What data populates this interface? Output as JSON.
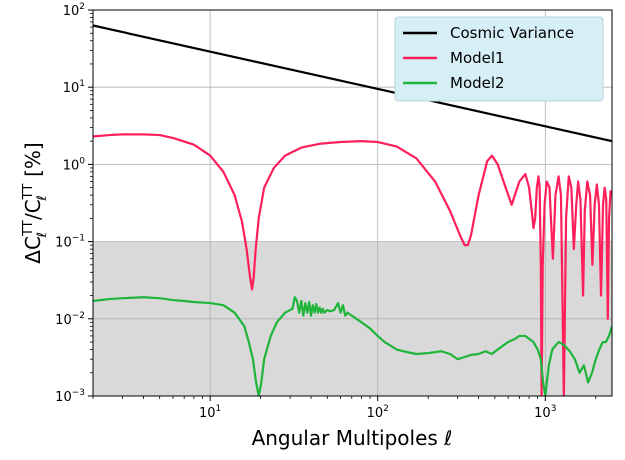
{
  "chart_data": {
    "type": "line",
    "title": "",
    "xlabel": "Angular Multipoles ℓ",
    "ylabel": "ΔCℓTT/CℓTT [%]",
    "ylabel_parts": {
      "delta_c": "ΔC",
      "ell_sub": "ℓ",
      "tt_sup": "TT",
      "slash_c": "/C",
      "percent": " [%]"
    },
    "xscale": "log",
    "yscale": "log",
    "xlim": [
      2,
      2500
    ],
    "ylim": [
      0.001,
      100
    ],
    "grid": true,
    "legend_position": "top-right",
    "shaded_region": {
      "y_from": 0.001,
      "y_to": 0.1,
      "color": "#d9d9d9"
    },
    "x_ticks": [
      {
        "value": 10,
        "base": "10",
        "exp": "1"
      },
      {
        "value": 100,
        "base": "10",
        "exp": "2"
      },
      {
        "value": 1000,
        "base": "10",
        "exp": "3"
      }
    ],
    "y_ticks": [
      {
        "value": 0.001,
        "base": "10",
        "exp": "−3"
      },
      {
        "value": 0.01,
        "base": "10",
        "exp": "−2"
      },
      {
        "value": 0.1,
        "base": "10",
        "exp": "−1"
      },
      {
        "value": 1,
        "base": "10",
        "exp": "0"
      },
      {
        "value": 10,
        "base": "10",
        "exp": "1"
      },
      {
        "value": 100,
        "base": "10",
        "exp": "2"
      }
    ],
    "series": [
      {
        "name": "Cosmic Variance",
        "color": "#000000",
        "x": [
          2,
          2500
        ],
        "y": [
          63,
          2.0
        ]
      },
      {
        "name": "Model1",
        "color": "#ff1f5b",
        "x": [
          2,
          2.5,
          3,
          4,
          5,
          6,
          8,
          10,
          12,
          14,
          15.5,
          16.5,
          17.3,
          17.8,
          18.2,
          18.7,
          19.5,
          21,
          24,
          28,
          35,
          45,
          60,
          80,
          100,
          130,
          170,
          220,
          270,
          310,
          330,
          345,
          360,
          400,
          450,
          480,
          520,
          580,
          630,
          700,
          760,
          800,
          830,
          850,
          870,
          890,
          910,
          925,
          940,
          950,
          965,
          990,
          1020,
          1060,
          1080,
          1110,
          1150,
          1200,
          1240,
          1290,
          1330,
          1380,
          1430,
          1480,
          1530,
          1570,
          1620,
          1680,
          1720,
          1780,
          1850,
          1910,
          1970,
          2030,
          2090,
          2150,
          2210,
          2260,
          2310,
          2360,
          2400,
          2450,
          2500
        ],
        "y": [
          2.3,
          2.4,
          2.45,
          2.45,
          2.4,
          2.2,
          1.8,
          1.3,
          0.8,
          0.4,
          0.18,
          0.08,
          0.035,
          0.024,
          0.035,
          0.08,
          0.2,
          0.5,
          0.9,
          1.3,
          1.65,
          1.85,
          1.95,
          2.0,
          1.95,
          1.7,
          1.2,
          0.6,
          0.25,
          0.12,
          0.09,
          0.09,
          0.12,
          0.4,
          1.1,
          1.3,
          1.0,
          0.5,
          0.3,
          0.6,
          0.75,
          0.5,
          0.25,
          0.15,
          0.2,
          0.5,
          0.7,
          0.5,
          0.05,
          0.001,
          0.05,
          0.3,
          0.6,
          0.5,
          0.2,
          0.06,
          0.4,
          0.7,
          0.4,
          0.001,
          0.2,
          0.7,
          0.5,
          0.08,
          0.3,
          0.6,
          0.35,
          0.02,
          0.25,
          0.6,
          0.4,
          0.05,
          0.3,
          0.55,
          0.3,
          0.02,
          0.3,
          0.5,
          0.35,
          0.01,
          0.2,
          0.45,
          0.4
        ]
      },
      {
        "name": "Model2",
        "color": "#1eb53a",
        "x": [
          2,
          2.5,
          3,
          4,
          5,
          6,
          7,
          8,
          10,
          12,
          14,
          16,
          17,
          18,
          18.8,
          19.5,
          20.2,
          21,
          23,
          25,
          28,
          31,
          32,
          33,
          34,
          35,
          36,
          37,
          38,
          39,
          40,
          41,
          42,
          43,
          44,
          45,
          46,
          47,
          48,
          50,
          52,
          55,
          58,
          60,
          62,
          64,
          66,
          70,
          80,
          90,
          100,
          110,
          130,
          150,
          170,
          200,
          240,
          270,
          300,
          330,
          360,
          400,
          440,
          480,
          520,
          560,
          600,
          660,
          700,
          760,
          800,
          850,
          900,
          940,
          970,
          1000,
          1050,
          1100,
          1150,
          1200,
          1250,
          1300,
          1400,
          1500,
          1600,
          1700,
          1800,
          1900,
          2000,
          2100,
          2200,
          2300,
          2400,
          2500
        ],
        "y": [
          0.017,
          0.018,
          0.0185,
          0.019,
          0.0185,
          0.0175,
          0.017,
          0.0165,
          0.016,
          0.015,
          0.012,
          0.008,
          0.005,
          0.003,
          0.0015,
          0.001,
          0.0015,
          0.003,
          0.006,
          0.009,
          0.012,
          0.0135,
          0.019,
          0.017,
          0.012,
          0.017,
          0.011,
          0.016,
          0.012,
          0.0165,
          0.011,
          0.015,
          0.012,
          0.0155,
          0.012,
          0.014,
          0.012,
          0.0135,
          0.012,
          0.013,
          0.0125,
          0.013,
          0.016,
          0.012,
          0.015,
          0.011,
          0.012,
          0.011,
          0.009,
          0.0075,
          0.006,
          0.005,
          0.004,
          0.0037,
          0.0035,
          0.0036,
          0.0038,
          0.0035,
          0.003,
          0.0032,
          0.0034,
          0.0035,
          0.0038,
          0.0035,
          0.004,
          0.0045,
          0.005,
          0.0055,
          0.006,
          0.006,
          0.0055,
          0.005,
          0.004,
          0.003,
          0.0015,
          0.001,
          0.0025,
          0.004,
          0.0045,
          0.005,
          0.0048,
          0.0045,
          0.0038,
          0.003,
          0.002,
          0.0025,
          0.0015,
          0.002,
          0.003,
          0.004,
          0.005,
          0.005,
          0.006,
          0.008
        ]
      }
    ]
  }
}
